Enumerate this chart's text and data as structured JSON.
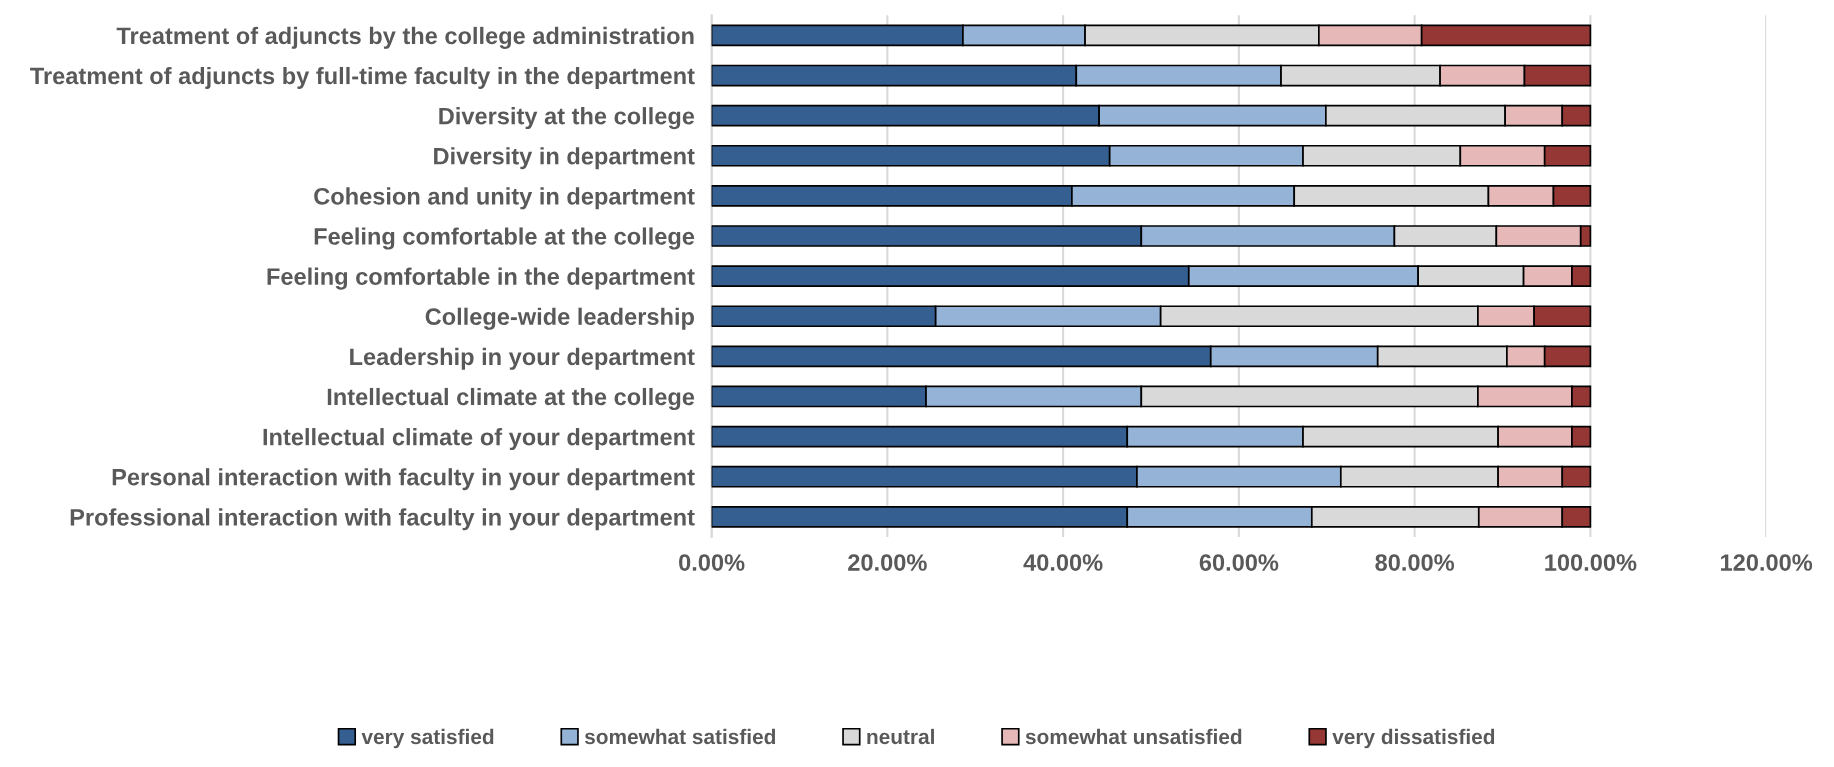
{
  "chart_data": {
    "type": "bar",
    "orientation": "horizontal",
    "stacked": true,
    "categories": [
      "Treatment of adjuncts by the college administration",
      "Treatment of adjuncts by full-time faculty in the department",
      "Diversity at the college",
      "Diversity in department",
      "Cohesion and unity in department",
      "Feeling comfortable at the college",
      "Feeling comfortable in the department",
      "College-wide leadership",
      "Leadership in your department",
      "Intellectual climate at the college",
      "Intellectual climate of your department",
      "Personal interaction with faculty in your department",
      "Professional interaction with faculty in your department"
    ],
    "series": [
      {
        "name": "very satisfied",
        "color": "#365f91",
        "values": [
          28.6,
          41.5,
          44.1,
          45.3,
          41.0,
          48.9,
          54.3,
          25.5,
          56.8,
          24.4,
          47.3,
          48.4,
          47.3
        ]
      },
      {
        "name": "somewhat satisfied",
        "color": "#95b3d7",
        "values": [
          13.9,
          23.3,
          25.8,
          22.0,
          25.3,
          28.8,
          26.1,
          25.6,
          19.0,
          24.5,
          20.0,
          23.2,
          21.0
        ]
      },
      {
        "name": "neutral",
        "color": "#d9d9d9",
        "values": [
          26.6,
          18.1,
          20.4,
          17.9,
          22.1,
          11.6,
          12.0,
          36.1,
          14.7,
          38.3,
          22.2,
          17.9,
          19.0
        ]
      },
      {
        "name": "somewhat unsatisfied",
        "color": "#e6b9b8",
        "values": [
          11.7,
          9.6,
          6.5,
          9.6,
          7.4,
          9.6,
          5.5,
          6.4,
          4.3,
          10.7,
          8.4,
          7.3,
          9.5
        ]
      },
      {
        "name": "very dissatisfied",
        "color": "#953735",
        "values": [
          19.2,
          7.5,
          3.2,
          5.2,
          4.2,
          1.1,
          2.1,
          6.4,
          5.2,
          2.1,
          2.1,
          3.2,
          3.2
        ]
      }
    ],
    "xlim": [
      0,
      120
    ],
    "xticks": [
      {
        "value": 0,
        "label": "0.00%"
      },
      {
        "value": 20,
        "label": "20.00%"
      },
      {
        "value": 40,
        "label": "40.00%"
      },
      {
        "value": 60,
        "label": "60.00%"
      },
      {
        "value": 80,
        "label": "80.00%"
      },
      {
        "value": 100,
        "label": "100.00%"
      },
      {
        "value": 120,
        "label": "120.00%"
      }
    ],
    "grid": "x",
    "legend": "bottom"
  }
}
